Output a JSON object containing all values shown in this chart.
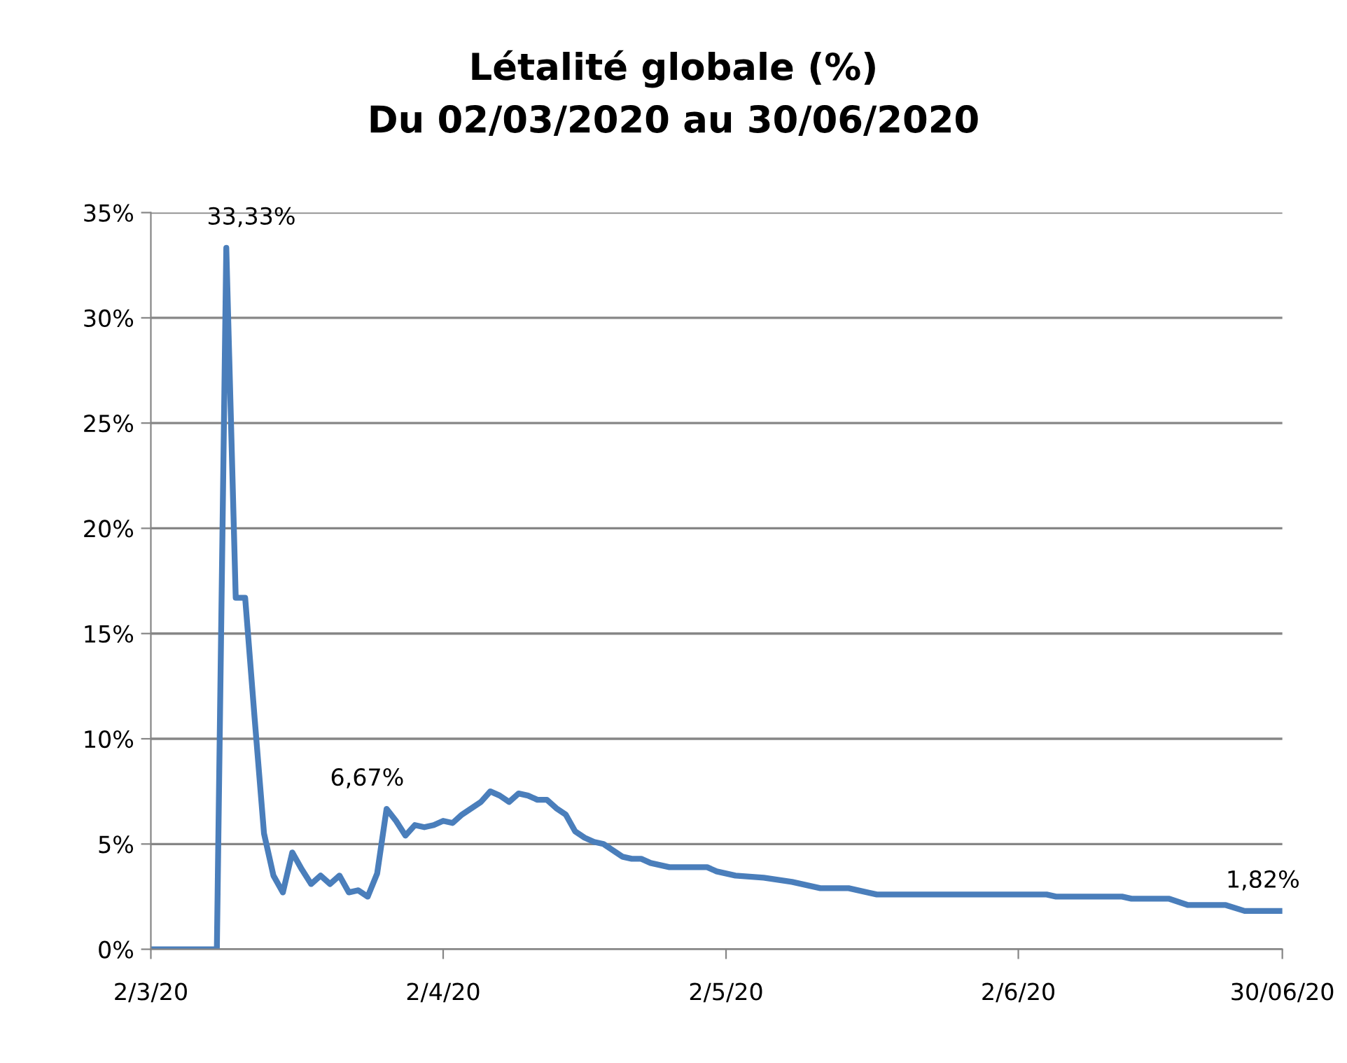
{
  "chart_data": {
    "type": "line",
    "title": "Létalité globale (%)",
    "subtitle": "Du 02/03/2020 au 30/06/2020",
    "x": [
      "2020-03-02",
      "2020-03-09",
      "2020-03-10",
      "2020-03-11",
      "2020-03-12",
      "2020-03-13",
      "2020-03-14",
      "2020-03-15",
      "2020-03-16",
      "2020-03-17",
      "2020-03-18",
      "2020-03-19",
      "2020-03-20",
      "2020-03-21",
      "2020-03-22",
      "2020-03-23",
      "2020-03-24",
      "2020-03-25",
      "2020-03-26",
      "2020-03-27",
      "2020-03-28",
      "2020-03-29",
      "2020-03-30",
      "2020-03-31",
      "2020-04-01",
      "2020-04-02",
      "2020-04-03",
      "2020-04-04",
      "2020-04-05",
      "2020-04-06",
      "2020-04-07",
      "2020-04-08",
      "2020-04-09",
      "2020-04-10",
      "2020-04-11",
      "2020-04-12",
      "2020-04-13",
      "2020-04-14",
      "2020-04-15",
      "2020-04-16",
      "2020-04-17",
      "2020-04-18",
      "2020-04-19",
      "2020-04-20",
      "2020-04-21",
      "2020-04-22",
      "2020-04-23",
      "2020-04-24",
      "2020-04-25",
      "2020-04-26",
      "2020-04-30",
      "2020-05-01",
      "2020-05-03",
      "2020-05-06",
      "2020-05-09",
      "2020-05-12",
      "2020-05-15",
      "2020-05-18",
      "2020-06-05",
      "2020-06-06",
      "2020-06-13",
      "2020-06-14",
      "2020-06-18",
      "2020-06-20",
      "2020-06-24",
      "2020-06-26",
      "2020-06-30"
    ],
    "series": [
      {
        "color": "#4a7ebb",
        "values": [
          0,
          0,
          33.33,
          16.7,
          16.7,
          11.0,
          5.5,
          3.5,
          2.7,
          4.6,
          3.8,
          3.1,
          3.5,
          3.1,
          3.5,
          2.7,
          2.8,
          2.5,
          3.6,
          6.67,
          6.1,
          5.4,
          5.9,
          5.8,
          5.9,
          6.1,
          6.0,
          6.4,
          6.7,
          7.0,
          7.5,
          7.3,
          7.0,
          7.4,
          7.3,
          7.1,
          7.1,
          6.7,
          6.4,
          5.6,
          5.3,
          5.1,
          5.0,
          4.7,
          4.4,
          4.3,
          4.3,
          4.1,
          4.0,
          3.9,
          3.9,
          3.7,
          3.5,
          3.4,
          3.2,
          2.9,
          2.9,
          2.6,
          2.6,
          2.5,
          2.5,
          2.4,
          2.4,
          2.1,
          2.1,
          1.82,
          1.82
        ]
      }
    ],
    "xlim": [
      "2020-03-02",
      "2020-06-30"
    ],
    "xticks": [
      {
        "value": "2020-03-02",
        "label": "2/3/20"
      },
      {
        "value": "2020-04-02",
        "label": "2/4/20"
      },
      {
        "value": "2020-05-02",
        "label": "2/5/20"
      },
      {
        "value": "2020-06-02",
        "label": "2/6/20"
      },
      {
        "value": "2020-06-30",
        "label": "30/06/20"
      }
    ],
    "ylim": [
      0,
      35
    ],
    "yticks": [
      {
        "value": 0,
        "label": "0%"
      },
      {
        "value": 5,
        "label": "5%"
      },
      {
        "value": 10,
        "label": "10%"
      },
      {
        "value": 15,
        "label": "15%"
      },
      {
        "value": 20,
        "label": "20%"
      },
      {
        "value": 25,
        "label": "25%"
      },
      {
        "value": 30,
        "label": "30%"
      },
      {
        "value": 35,
        "label": "35%"
      }
    ],
    "grid": "y",
    "marker": "none",
    "line_style": "solid",
    "annotations": [
      {
        "text": "33,33%",
        "x": "2020-03-10",
        "y": 33.33
      },
      {
        "text": "6,67%",
        "x": "2020-03-27",
        "y": 6.67
      },
      {
        "text": "1,82%",
        "x": "2020-06-30",
        "y": 1.82
      }
    ]
  }
}
